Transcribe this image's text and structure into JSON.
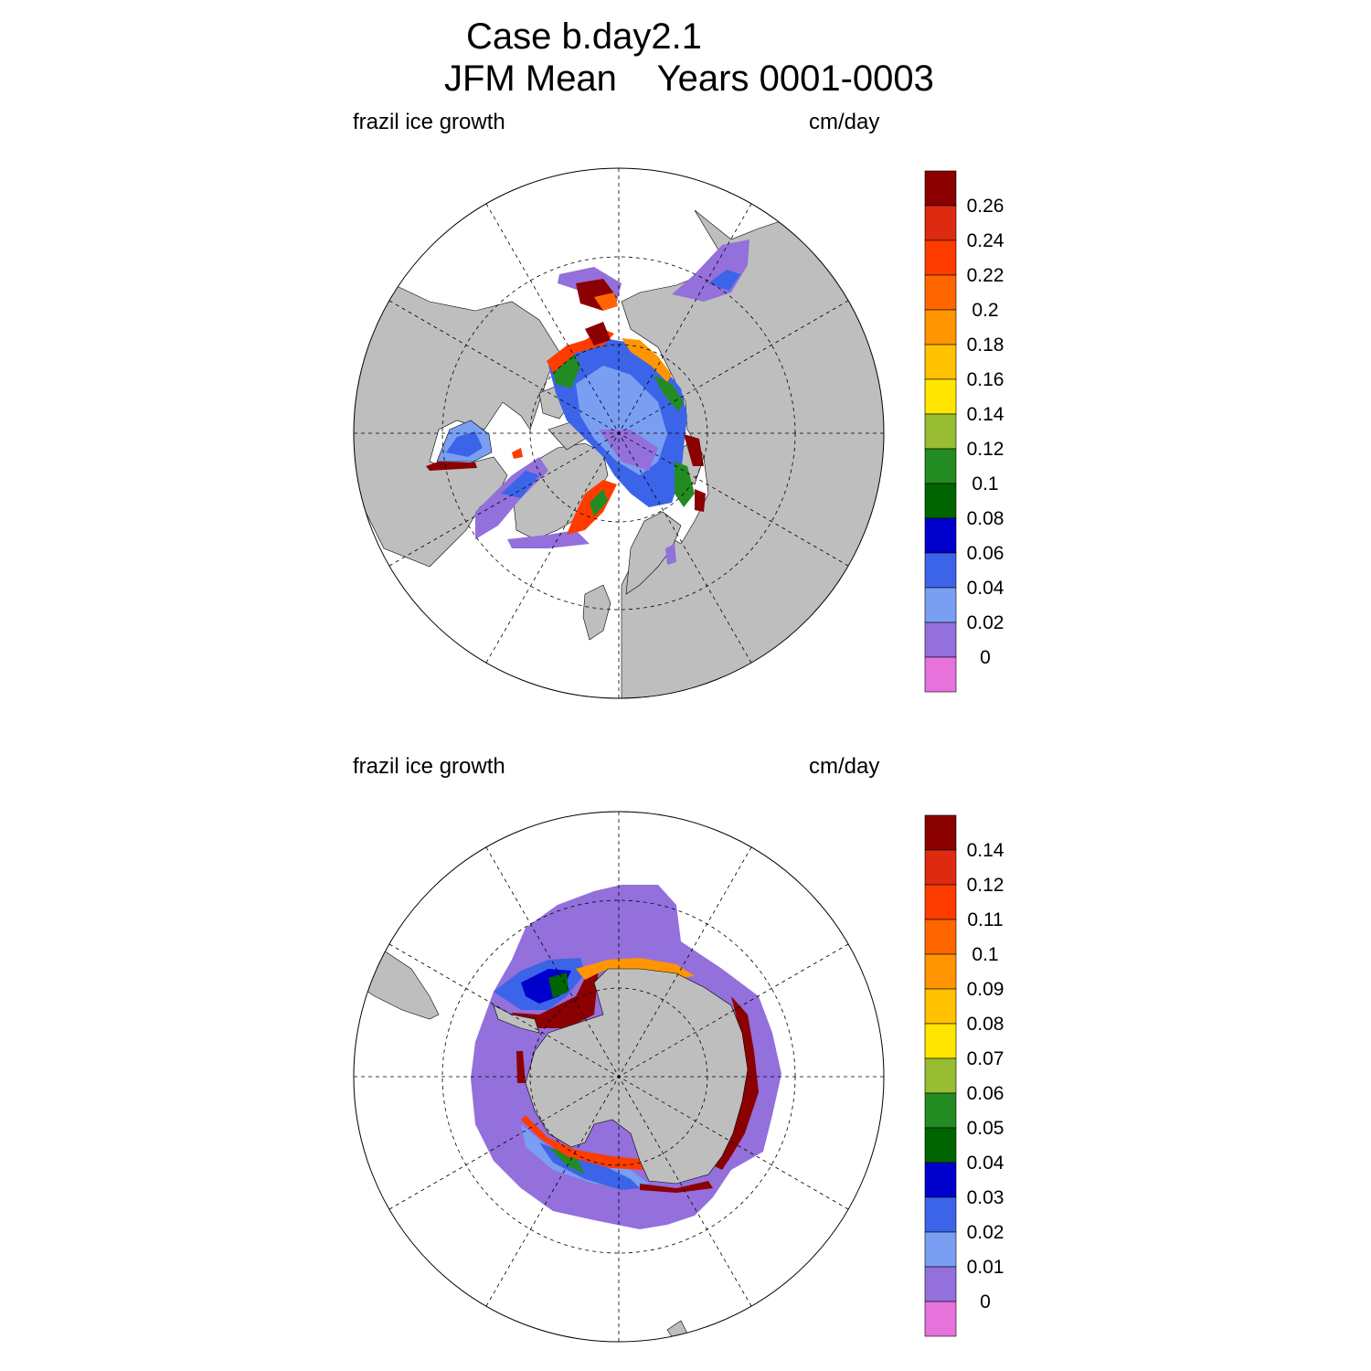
{
  "title": {
    "line1": "Case b.day2.1",
    "line2": "JFM Mean    Years 0001-0003"
  },
  "panels": [
    {
      "left_label": "frazil ice growth",
      "right_label": "cm/day",
      "hemisphere": "north",
      "colorbar": {
        "labels": [
          "0.26",
          "0.24",
          "0.22",
          "0.2",
          "0.18",
          "0.16",
          "0.14",
          "0.12",
          "0.1",
          "0.08",
          "0.06",
          "0.04",
          "0.02",
          "0"
        ]
      }
    },
    {
      "left_label": "frazil ice growth",
      "right_label": "cm/day",
      "hemisphere": "south",
      "colorbar": {
        "labels": [
          "0.14",
          "0.12",
          "0.11",
          "0.1",
          "0.09",
          "0.08",
          "0.07",
          "0.06",
          "0.05",
          "0.04",
          "0.03",
          "0.02",
          "0.01",
          "0"
        ]
      }
    }
  ],
  "colors": {
    "land": "#bebebe",
    "levels_top_to_bottom": [
      "#8b0000",
      "#dd2a10",
      "#ff3c00",
      "#ff6600",
      "#ff9500",
      "#ffc100",
      "#ffe500",
      "#98bc32",
      "#228b22",
      "#006400",
      "#0000cd",
      "#3c64e8",
      "#7a9ef2",
      "#9370db",
      "#e672dc"
    ]
  }
}
